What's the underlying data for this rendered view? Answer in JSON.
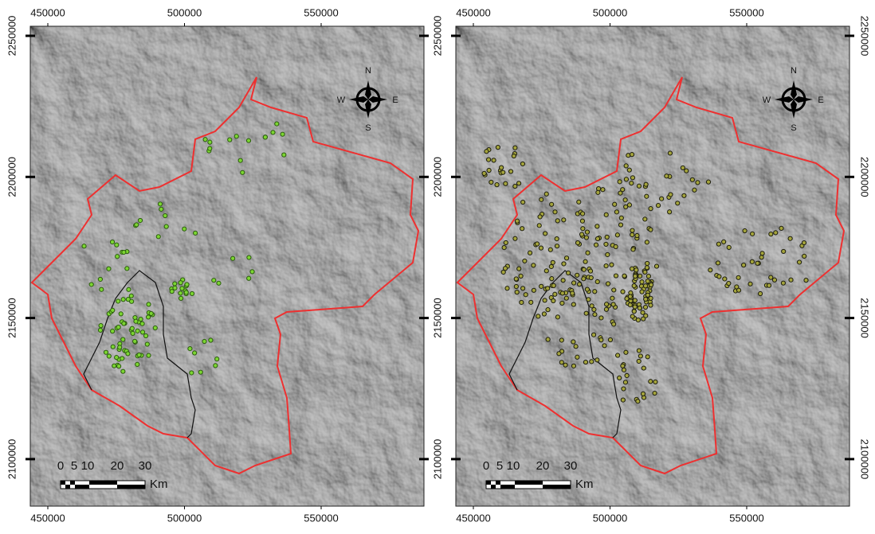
{
  "panels": [
    {
      "x_ticks": [
        450000,
        500000,
        550000
      ],
      "y_ticks": [
        2100000,
        2150000,
        2200000,
        2250000
      ],
      "compass": {
        "n": "N",
        "e": "E",
        "s": "S",
        "w": "W"
      },
      "scale_bar": {
        "labels": [
          0,
          5,
          10,
          20,
          30
        ],
        "unit": "Km"
      }
    },
    {
      "x_ticks": [
        450000,
        500000,
        550000
      ],
      "y_ticks": [
        2100000,
        2150000,
        2200000,
        2250000
      ],
      "compass": {
        "n": "N",
        "e": "E",
        "s": "S",
        "w": "W"
      },
      "scale_bar": {
        "labels": [
          0,
          5,
          10,
          20,
          30
        ],
        "unit": "Km"
      }
    }
  ]
}
